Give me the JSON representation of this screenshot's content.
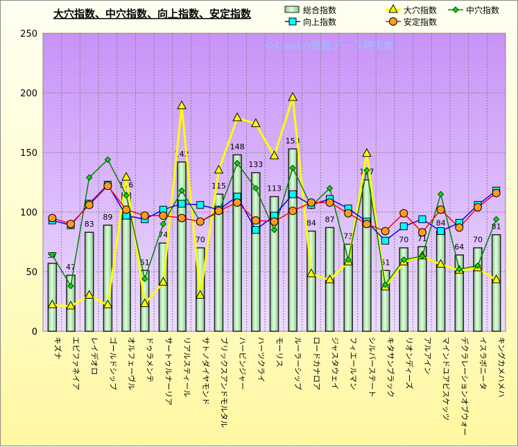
{
  "chart_data": {
    "type": "bar",
    "title": "大穴指数、中穴指数、向上指数、安定指数",
    "watermark": "©Caniの競馬データ研究室",
    "ylim": [
      0,
      250
    ],
    "yticks": [
      0,
      50,
      100,
      150,
      200,
      250
    ],
    "grid": true,
    "legend_position": "top-right",
    "categories": [
      "キズナ",
      "エピファネイア",
      "レイデオロ",
      "ゴールドシップ",
      "オルフェーヴル",
      "ドゥラメンテ",
      "サートゥルナーリア",
      "リアルスティール",
      "サトノダイヤモンド",
      "ブリックスアンドモルタル",
      "ハービンジャー",
      "ハーツクライ",
      "モーリス",
      "ルーラーシップ",
      "ロードカナロア",
      "ジャスタウェイ",
      "フィエールマン",
      "シルバーステート",
      "キタサンブラック",
      "リオンディーズ",
      "アルアイン",
      "マインドユアビスケッツ",
      "デクラレーションオブウォー",
      "イスラボニータ",
      "キングカメハメハ"
    ],
    "series": [
      {
        "name": "総合指数",
        "type": "bar",
        "color": "#c8f0c8",
        "values": [
          57,
          47,
          83,
          89,
          116,
          51,
          74,
          142,
          70,
          115,
          148,
          133,
          113,
          153,
          84,
          87,
          73,
          127,
          51,
          70,
          71,
          84,
          64,
          70,
          81
        ]
      },
      {
        "name": "大穴指数",
        "type": "line",
        "marker": "triangle",
        "color": "#ffff00",
        "values": [
          22,
          21,
          30,
          22,
          129,
          23,
          41,
          189,
          30,
          135,
          179,
          174,
          147,
          196,
          48,
          43,
          58,
          149,
          37,
          58,
          63,
          56,
          51,
          53,
          43
        ]
      },
      {
        "name": "中穴指数",
        "type": "line",
        "marker": "diamond",
        "color": "#008000",
        "values": [
          64,
          38,
          129,
          144,
          114,
          44,
          90,
          118,
          92,
          100,
          141,
          120,
          85,
          137,
          105,
          120,
          60,
          135,
          39,
          60,
          63,
          115,
          52,
          55,
          94
        ]
      },
      {
        "name": "向上指数",
        "type": "line",
        "marker": "square",
        "color": "#0000ff",
        "values": [
          93,
          89,
          107,
          123,
          97,
          94,
          102,
          107,
          106,
          102,
          113,
          85,
          97,
          115,
          106,
          111,
          103,
          92,
          76,
          88,
          94,
          84,
          91,
          106,
          118
        ]
      },
      {
        "name": "安定指数",
        "type": "line",
        "marker": "circle",
        "color": "#ff0000",
        "values": [
          95,
          90,
          106,
          122,
          102,
          97,
          97,
          95,
          92,
          101,
          108,
          93,
          92,
          101,
          108,
          108,
          99,
          90,
          84,
          99,
          83,
          102,
          87,
          104,
          116
        ]
      }
    ]
  }
}
